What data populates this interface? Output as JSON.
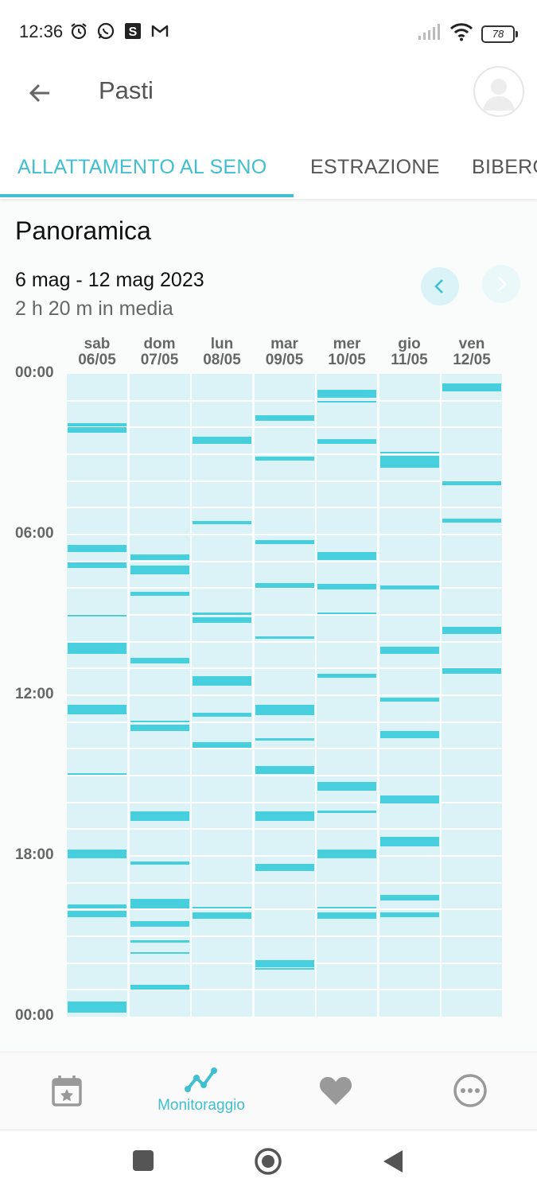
{
  "status": {
    "time": "12:36",
    "battery": "78",
    "icons": [
      "alarm-icon",
      "whatsapp-icon",
      "s-app-icon",
      "gmail-icon",
      "signal-icon",
      "wifi-icon"
    ]
  },
  "appbar": {
    "title": "Pasti"
  },
  "tabs": [
    {
      "label": "ALLATTAMENTO AL SENO",
      "active": true
    },
    {
      "label": "ESTRAZIONE",
      "active": false
    },
    {
      "label": "BIBERON",
      "active": false
    }
  ],
  "overview": {
    "title": "Panoramica",
    "date_range": "6 mag - 12 mag 2023",
    "average": "2 h 20 m in media"
  },
  "chart_data": {
    "type": "timeline",
    "colors": {
      "bar": "#48cfdd",
      "column": "#dbf2f6",
      "accent": "#3fbfcf"
    },
    "y_axis_labels": [
      "00:00",
      "06:00",
      "12:00",
      "18:00",
      "00:00"
    ],
    "y_range_hours": [
      0,
      24
    ],
    "days": [
      {
        "weekday": "sab",
        "date": "06/05",
        "sessions": [
          [
            1.85,
            1.95
          ],
          [
            2.0,
            2.2
          ],
          [
            6.4,
            6.65
          ],
          [
            7.05,
            7.25
          ],
          [
            9.0,
            9.07
          ],
          [
            10.05,
            10.45
          ],
          [
            12.35,
            12.7
          ],
          [
            14.9,
            14.97
          ],
          [
            17.75,
            18.1
          ],
          [
            19.8,
            19.95
          ],
          [
            20.05,
            20.3
          ],
          [
            23.45,
            23.85
          ]
        ]
      },
      {
        "weekday": "dom",
        "date": "07/05",
        "sessions": [
          [
            6.75,
            6.95
          ],
          [
            7.15,
            7.5
          ],
          [
            8.15,
            8.3
          ],
          [
            10.6,
            10.8
          ],
          [
            12.95,
            13.0
          ],
          [
            13.1,
            13.35
          ],
          [
            16.35,
            16.7
          ],
          [
            18.2,
            18.33
          ],
          [
            19.6,
            19.95
          ],
          [
            20.45,
            20.65
          ],
          [
            21.15,
            21.25
          ],
          [
            21.6,
            21.65
          ],
          [
            22.8,
            23.0
          ]
        ]
      },
      {
        "weekday": "lun",
        "date": "08/05",
        "sessions": [
          [
            2.35,
            2.6
          ],
          [
            5.5,
            5.6
          ],
          [
            8.9,
            9.0
          ],
          [
            9.1,
            9.3
          ],
          [
            11.3,
            11.65
          ],
          [
            12.65,
            12.8
          ],
          [
            13.75,
            13.95
          ],
          [
            19.9,
            19.97
          ],
          [
            20.1,
            20.35
          ]
        ]
      },
      {
        "weekday": "mar",
        "date": "09/05",
        "sessions": [
          [
            1.55,
            1.75
          ],
          [
            3.1,
            3.25
          ],
          [
            6.2,
            6.35
          ],
          [
            7.8,
            8.0
          ],
          [
            9.8,
            9.9
          ],
          [
            12.35,
            12.75
          ],
          [
            13.6,
            13.7
          ],
          [
            14.65,
            14.95
          ],
          [
            16.35,
            16.7
          ],
          [
            18.3,
            18.55
          ],
          [
            21.9,
            22.15
          ],
          [
            22.2,
            22.25
          ]
        ]
      },
      {
        "weekday": "mer",
        "date": "10/05",
        "sessions": [
          [
            0.6,
            0.9
          ],
          [
            1.0,
            1.05
          ],
          [
            2.45,
            2.6
          ],
          [
            6.65,
            6.95
          ],
          [
            7.85,
            8.05
          ],
          [
            8.9,
            8.95
          ],
          [
            11.2,
            11.35
          ],
          [
            15.25,
            15.55
          ],
          [
            16.3,
            16.4
          ],
          [
            17.75,
            18.1
          ],
          [
            19.9,
            19.97
          ],
          [
            20.1,
            20.35
          ]
        ]
      },
      {
        "weekday": "gio",
        "date": "11/05",
        "sessions": [
          [
            2.9,
            2.95
          ],
          [
            3.05,
            3.5
          ],
          [
            7.9,
            8.05
          ],
          [
            10.2,
            10.45
          ],
          [
            12.1,
            12.25
          ],
          [
            13.35,
            13.6
          ],
          [
            15.75,
            16.05
          ],
          [
            17.3,
            17.65
          ],
          [
            19.45,
            19.65
          ],
          [
            20.1,
            20.3
          ]
        ]
      },
      {
        "weekday": "ven",
        "date": "12/05",
        "sessions": [
          [
            0.35,
            0.65
          ],
          [
            4.0,
            4.15
          ],
          [
            5.4,
            5.55
          ],
          [
            9.45,
            9.7
          ],
          [
            11.0,
            11.2
          ]
        ]
      }
    ]
  },
  "bottom_nav": {
    "items": [
      {
        "name": "calendar-icon",
        "label": ""
      },
      {
        "name": "trend-icon",
        "label": "Monitoraggio"
      },
      {
        "name": "heart-icon",
        "label": ""
      },
      {
        "name": "more-icon",
        "label": ""
      }
    ]
  }
}
